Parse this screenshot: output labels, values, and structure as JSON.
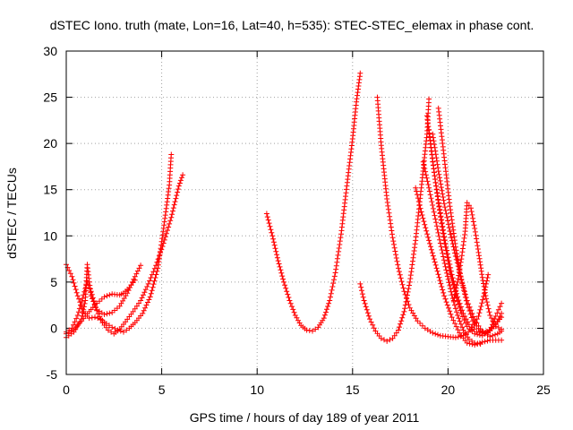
{
  "chart_data": {
    "type": "scatter",
    "title": "dSTEC Iono. truth (mate, Lon=16, Lat=40, h=535): STEC-STEC_elemax in phase cont.",
    "xlabel": "GPS time / hours of day 189 of year 2011",
    "ylabel": "dSTEC  / TECUs",
    "xlim": [
      0,
      25
    ],
    "ylim": [
      -5,
      30
    ],
    "x_ticks": [
      0,
      5,
      10,
      15,
      20,
      25
    ],
    "y_ticks": [
      -5,
      0,
      5,
      10,
      15,
      20,
      25,
      30
    ],
    "x_tick_labels": [
      "0",
      "5",
      "10",
      "15",
      "20",
      "25"
    ],
    "y_tick_labels": [
      "-5",
      "0",
      "5",
      "10",
      "15",
      "20",
      "25",
      "30"
    ],
    "grid": true,
    "marker": "+",
    "colors": {
      "series": "#ff0000",
      "axes": "#000000",
      "grid": "#a0a0a0"
    },
    "series": [
      {
        "points": [
          [
            0.0,
            6.9
          ],
          [
            0.3,
            5.6
          ],
          [
            0.6,
            3.5
          ],
          [
            0.9,
            1.8
          ],
          [
            1.2,
            1.1
          ],
          [
            1.5,
            1.2
          ],
          [
            1.8,
            1.0
          ],
          [
            2.1,
            0.5
          ],
          [
            2.4,
            0.1
          ],
          [
            2.7,
            -0.2
          ],
          [
            3.0,
            -0.4
          ],
          [
            3.3,
            0.0
          ],
          [
            3.6,
            0.6
          ],
          [
            4.0,
            1.6
          ],
          [
            4.4,
            3.4
          ],
          [
            4.8,
            6.5
          ],
          [
            5.1,
            10.8
          ],
          [
            5.4,
            15.5
          ],
          [
            5.5,
            18.8
          ]
        ]
      },
      {
        "points": [
          [
            0.0,
            -0.4
          ],
          [
            0.3,
            0.0
          ],
          [
            0.6,
            1.4
          ],
          [
            0.9,
            3.6
          ],
          [
            1.1,
            5.0
          ],
          [
            1.3,
            4.0
          ],
          [
            1.6,
            1.9
          ],
          [
            1.9,
            0.6
          ],
          [
            2.2,
            -0.2
          ],
          [
            2.5,
            -0.6
          ],
          [
            2.8,
            -0.1
          ],
          [
            3.1,
            0.7
          ],
          [
            3.5,
            1.8
          ],
          [
            3.9,
            3.0
          ],
          [
            4.3,
            4.8
          ],
          [
            4.7,
            6.8
          ],
          [
            5.1,
            9.2
          ],
          [
            5.5,
            12.0
          ],
          [
            5.9,
            15.4
          ],
          [
            6.1,
            16.6
          ]
        ]
      },
      {
        "points": [
          [
            0.0,
            -1.0
          ],
          [
            0.4,
            -0.4
          ],
          [
            0.8,
            1.0
          ],
          [
            1.0,
            3.0
          ],
          [
            1.1,
            6.9
          ],
          [
            1.3,
            3.5
          ],
          [
            1.6,
            2.0
          ],
          [
            2.0,
            1.5
          ],
          [
            2.4,
            1.7
          ],
          [
            2.8,
            2.4
          ],
          [
            3.2,
            3.8
          ],
          [
            3.6,
            5.6
          ],
          [
            3.9,
            6.8
          ]
        ]
      },
      {
        "points": [
          [
            0.0,
            -0.6
          ],
          [
            0.4,
            -0.2
          ],
          [
            0.8,
            0.8
          ],
          [
            1.2,
            1.8
          ],
          [
            1.6,
            2.7
          ],
          [
            2.0,
            3.4
          ],
          [
            2.4,
            3.7
          ],
          [
            2.8,
            3.6
          ],
          [
            3.0,
            3.8
          ],
          [
            3.3,
            4.4
          ],
          [
            3.6,
            5.2
          ]
        ]
      },
      {
        "points": [
          [
            10.5,
            12.4
          ],
          [
            10.8,
            10.0
          ],
          [
            11.1,
            7.3
          ],
          [
            11.4,
            5.0
          ],
          [
            11.7,
            3.0
          ],
          [
            12.0,
            1.4
          ],
          [
            12.3,
            0.3
          ],
          [
            12.6,
            -0.2
          ],
          [
            12.9,
            -0.3
          ],
          [
            13.2,
            0.1
          ],
          [
            13.5,
            1.1
          ],
          [
            13.8,
            3.0
          ],
          [
            14.1,
            6.0
          ],
          [
            14.4,
            10.2
          ],
          [
            14.7,
            15.4
          ],
          [
            15.0,
            20.5
          ],
          [
            15.2,
            24.5
          ],
          [
            15.4,
            27.6
          ]
        ]
      },
      {
        "points": [
          [
            15.4,
            4.8
          ],
          [
            15.6,
            3.0
          ],
          [
            15.9,
            1.0
          ],
          [
            16.2,
            -0.3
          ],
          [
            16.5,
            -1.1
          ],
          [
            16.8,
            -1.4
          ],
          [
            17.1,
            -1.1
          ],
          [
            17.4,
            -0.2
          ],
          [
            17.7,
            1.8
          ],
          [
            18.0,
            5.0
          ],
          [
            18.3,
            9.5
          ],
          [
            18.6,
            15.2
          ],
          [
            18.9,
            21.0
          ],
          [
            19.0,
            24.8
          ]
        ]
      },
      {
        "points": [
          [
            16.3,
            25.0
          ],
          [
            16.5,
            19.8
          ],
          [
            16.8,
            14.0
          ],
          [
            17.1,
            9.8
          ],
          [
            17.4,
            6.5
          ],
          [
            17.7,
            4.0
          ],
          [
            18.0,
            2.2
          ],
          [
            18.4,
            0.8
          ],
          [
            18.8,
            0.0
          ],
          [
            19.2,
            -0.5
          ],
          [
            19.6,
            -0.8
          ],
          [
            20.0,
            -0.9
          ],
          [
            20.4,
            -1.0
          ],
          [
            20.8,
            -0.8
          ],
          [
            21.2,
            -0.2
          ],
          [
            21.6,
            1.3
          ],
          [
            21.9,
            3.8
          ],
          [
            22.1,
            5.8
          ]
        ]
      },
      {
        "points": [
          [
            18.3,
            15.2
          ],
          [
            18.6,
            12.6
          ],
          [
            19.0,
            9.5
          ],
          [
            19.4,
            6.5
          ],
          [
            19.8,
            3.5
          ],
          [
            20.2,
            1.2
          ],
          [
            20.6,
            -0.5
          ],
          [
            21.0,
            -1.6
          ],
          [
            21.4,
            -1.8
          ],
          [
            21.8,
            -1.5
          ],
          [
            22.2,
            -1.3
          ],
          [
            22.8,
            -1.3
          ]
        ]
      },
      {
        "points": [
          [
            18.9,
            23.0
          ],
          [
            19.2,
            18.0
          ],
          [
            19.5,
            13.5
          ],
          [
            19.8,
            9.5
          ],
          [
            20.1,
            6.2
          ],
          [
            20.4,
            3.6
          ],
          [
            20.7,
            1.6
          ],
          [
            21.0,
            0.2
          ],
          [
            21.4,
            -0.6
          ],
          [
            21.8,
            -0.8
          ],
          [
            22.2,
            -0.2
          ],
          [
            22.5,
            1.3
          ],
          [
            22.8,
            2.7
          ]
        ]
      },
      {
        "points": [
          [
            19.0,
            21.5
          ],
          [
            19.3,
            16.5
          ],
          [
            19.6,
            12.5
          ],
          [
            19.9,
            8.8
          ],
          [
            20.2,
            5.8
          ],
          [
            20.5,
            3.4
          ],
          [
            20.8,
            1.6
          ],
          [
            21.1,
            0.4
          ],
          [
            21.5,
            -0.4
          ],
          [
            21.9,
            -0.5
          ],
          [
            22.3,
            0.0
          ],
          [
            22.8,
            1.2
          ]
        ]
      },
      {
        "points": [
          [
            19.5,
            23.8
          ],
          [
            19.8,
            18.5
          ],
          [
            20.1,
            13.2
          ],
          [
            20.4,
            8.8
          ],
          [
            20.7,
            5.2
          ],
          [
            21.0,
            2.6
          ],
          [
            21.3,
            0.8
          ],
          [
            21.7,
            -0.3
          ],
          [
            22.1,
            -0.5
          ],
          [
            22.5,
            0.4
          ],
          [
            22.8,
            1.6
          ]
        ]
      },
      {
        "points": [
          [
            18.7,
            18.0
          ],
          [
            19.0,
            15.2
          ],
          [
            19.3,
            12.2
          ],
          [
            19.6,
            9.2
          ],
          [
            19.9,
            6.3
          ],
          [
            20.2,
            3.6
          ],
          [
            20.5,
            1.4
          ],
          [
            20.8,
            -0.2
          ],
          [
            21.1,
            -1.2
          ],
          [
            21.4,
            -1.6
          ],
          [
            21.7,
            -1.7
          ]
        ]
      },
      {
        "points": [
          [
            19.2,
            21.0
          ],
          [
            19.5,
            17.0
          ],
          [
            19.8,
            13.5
          ],
          [
            20.1,
            10.5
          ],
          [
            20.4,
            7.8
          ],
          [
            20.7,
            5.3
          ],
          [
            21.0,
            3.0
          ],
          [
            21.4,
            0.9
          ],
          [
            21.8,
            -0.4
          ],
          [
            22.2,
            -0.9
          ],
          [
            22.6,
            -0.6
          ],
          [
            22.8,
            -0.3
          ]
        ]
      },
      {
        "points": [
          [
            20.3,
            3.0
          ],
          [
            20.5,
            5.0
          ],
          [
            20.7,
            7.5
          ],
          [
            20.9,
            10.5
          ],
          [
            21.0,
            13.6
          ],
          [
            21.2,
            13.0
          ],
          [
            21.4,
            10.8
          ],
          [
            21.6,
            8.2
          ],
          [
            21.8,
            5.5
          ],
          [
            22.0,
            3.2
          ],
          [
            22.2,
            1.4
          ],
          [
            22.5,
            0.2
          ],
          [
            22.8,
            -0.1
          ]
        ]
      }
    ]
  }
}
